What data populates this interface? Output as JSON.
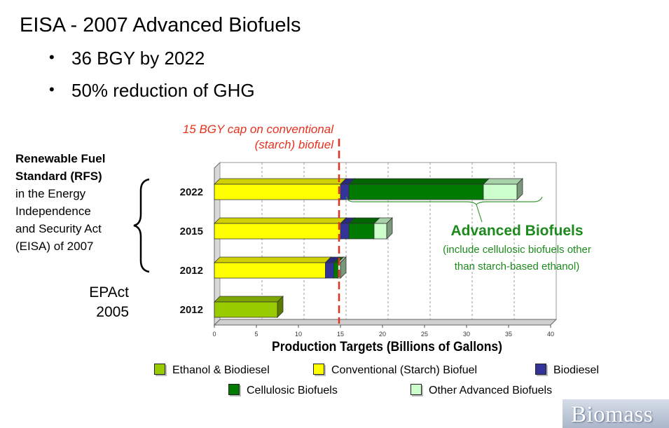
{
  "slide": {
    "title": "EISA - 2007 Advanced Biofuels",
    "bullets": [
      "36 BGY by 2022",
      "50% reduction of GHG"
    ]
  },
  "rfs_label": {
    "bold_lines": [
      "Renewable Fuel",
      "Standard (RFS)"
    ],
    "lines": [
      "in the Energy",
      "Independence",
      "and Security Act",
      "(EISA) of 2007"
    ]
  },
  "epact_label": [
    "EPAct",
    "2005"
  ],
  "cap_annotation": [
    "15 BGY cap on conventional",
    "(starch) biofuel"
  ],
  "advanced_annotation": {
    "title": "Advanced Biofuels",
    "subtitle_lines": [
      "(include cellulosic biofuels other",
      "than starch-based ethanol)"
    ]
  },
  "logo_text": "Biomass",
  "colors": {
    "ethanol_biodiesel": "#99cc00",
    "conventional": "#ffff00",
    "biodiesel": "#333399",
    "cellulosic": "#007a00",
    "other_advanced": "#ccffcc",
    "cap_line": "#e8301e",
    "annotation_green": "#1d8a1d"
  },
  "chart_data": {
    "type": "bar",
    "orientation": "horizontal",
    "stacked": true,
    "categories": [
      "2022",
      "2015",
      "2012",
      "2012"
    ],
    "series": [
      {
        "name": "Ethanol & Biodiesel",
        "color": "#99cc00",
        "values": [
          0,
          0,
          0,
          7.5
        ]
      },
      {
        "name": "Conventional (Starch) Biofuel",
        "color": "#ffff00",
        "values": [
          15,
          15,
          13.2,
          0
        ]
      },
      {
        "name": "Biodiesel",
        "color": "#333399",
        "values": [
          1,
          1,
          1,
          0
        ]
      },
      {
        "name": "Cellulosic Biofuels",
        "color": "#007a00",
        "values": [
          16,
          3,
          0.5,
          0
        ]
      },
      {
        "name": "Other Advanced Biofuels",
        "color": "#ccffcc",
        "values": [
          4,
          1.5,
          0.3,
          0
        ]
      }
    ],
    "xlabel": "Production Targets (Billions of Gallons)",
    "xlim": [
      0,
      40
    ],
    "xticks": [
      0,
      5,
      10,
      15,
      20,
      25,
      30,
      35,
      40
    ],
    "cap_line_x": 15,
    "grid": "vertical-dashed",
    "legend_position": "bottom"
  }
}
